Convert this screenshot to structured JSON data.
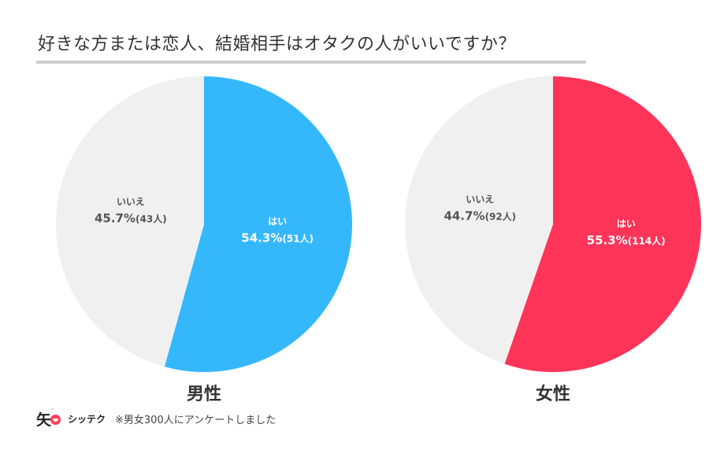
{
  "title": "好きな方または恋人、結婚相手はオタクの人がいいですか？",
  "chart_data": [
    {
      "type": "pie",
      "title": "男性",
      "slices": [
        {
          "label": "はい",
          "percent": 54.3,
          "count_label": "(51人)",
          "value_label": "54.3%",
          "color": "#35b8fb"
        },
        {
          "label": "いいえ",
          "percent": 45.7,
          "count_label": "(43人)",
          "value_label": "45.7%",
          "color": "#f0f0f0"
        }
      ]
    },
    {
      "type": "pie",
      "title": "女性",
      "slices": [
        {
          "label": "はい",
          "percent": 55.3,
          "count_label": "(114人)",
          "value_label": "55.3%",
          "color": "#ff3459"
        },
        {
          "label": "いいえ",
          "percent": 44.7,
          "count_label": "(92人)",
          "value_label": "44.7%",
          "color": "#f0f0f0"
        }
      ]
    }
  ],
  "footer": {
    "logo_glyph": "矢",
    "brand": "シッテク",
    "note": "※男女300人にアンケートしました"
  }
}
